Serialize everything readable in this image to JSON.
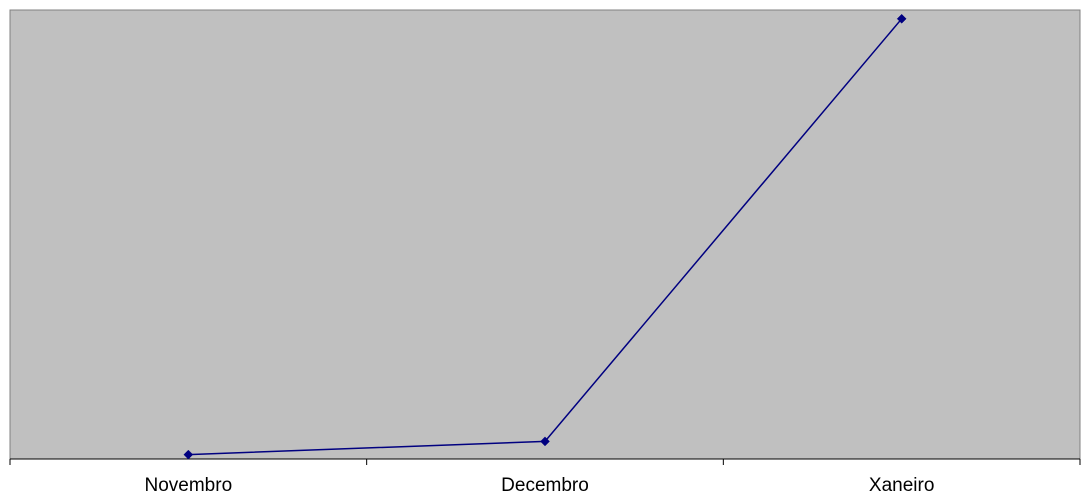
{
  "chart_data": {
    "type": "line",
    "categories": [
      "Novembro",
      "Decembro",
      "Xaneiro"
    ],
    "series": [
      {
        "values": [
          1,
          4,
          100
        ]
      }
    ],
    "ylim": [
      0,
      102
    ],
    "grid": false,
    "legend": "none",
    "title": "",
    "xlabel": "",
    "ylabel": ""
  },
  "colors": {
    "plot_background": "#c0c0c0",
    "plot_border": "#808080",
    "series_line": "#000080",
    "axis": "#000000"
  }
}
